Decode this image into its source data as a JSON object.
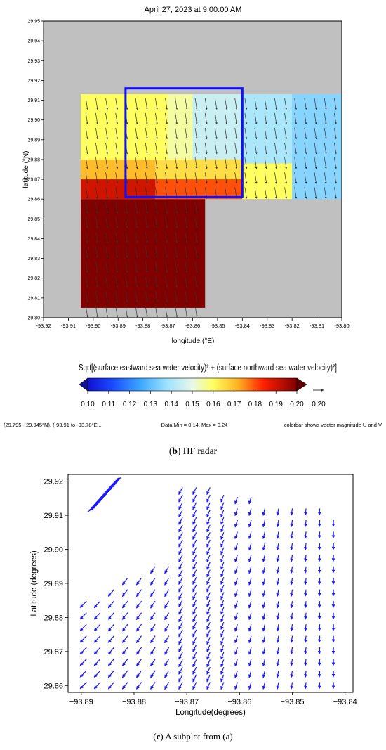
{
  "panel_b": {
    "caption_letter": "b",
    "caption_text": " HF radar",
    "footer_left": "(29.795 - 29.945°N), (-93.91 to -93.78°E...",
    "footer_center": "Data Min = 0.14, Max = 0.24",
    "footer_right": "colorbar shows vector magnitude U and V",
    "colorbar_title": "Sqrt[(surface eastward sea water velocity)² + (surface northward sea water velocity)²]",
    "colorbar_ticks": [
      "0.10",
      "0.11",
      "0.12",
      "0.13",
      "0.14",
      "0.15",
      "0.16",
      "0.17",
      "0.18",
      "0.19",
      "0.20"
    ],
    "reference_vector_label": "0.20",
    "colors": {
      "background_gray": "#c0c0c0",
      "box": "#1010ff",
      "axes_frame": "#000000"
    }
  },
  "panel_c": {
    "caption_letter": "c",
    "caption_text": " A subplot from (a)",
    "colors": {
      "arrow": "#1a1aff"
    }
  },
  "chart_data": [
    {
      "type": "heatmap",
      "title": "April 27, 2023 at 9:00:00 AM",
      "xlabel": "longitude (°E)",
      "ylabel": "latitude (°N)",
      "xlim": [
        -93.92,
        -93.8
      ],
      "ylim": [
        29.8,
        29.95
      ],
      "x_ticks": [
        -93.92,
        -93.91,
        -93.9,
        -93.89,
        -93.88,
        -93.87,
        -93.86,
        -93.85,
        -93.84,
        -93.83,
        -93.82,
        -93.81,
        -93.8
      ],
      "y_ticks": [
        29.8,
        29.81,
        29.82,
        29.83,
        29.84,
        29.85,
        29.86,
        29.87,
        29.88,
        29.89,
        29.9,
        29.91,
        29.92,
        29.93,
        29.94,
        29.95
      ],
      "colorbar_range": [
        0.1,
        0.2
      ],
      "value_units": "vector magnitude U and V",
      "grid": false,
      "highlight_box": {
        "lon_range": [
          -93.887,
          -93.84
        ],
        "lat_range": [
          29.861,
          29.916
        ]
      },
      "regions": [
        {
          "lon_range": [
            -93.905,
            -93.855
          ],
          "lat_range": [
            29.805,
            29.86
          ],
          "value": 0.2
        },
        {
          "lon_range": [
            -93.855,
            -93.84
          ],
          "lat_range": [
            29.86,
            29.875
          ],
          "value": 0.18
        },
        {
          "lon_range": [
            -93.84,
            -93.82
          ],
          "lat_range": [
            29.86,
            29.878
          ],
          "value": 0.16
        },
        {
          "lon_range": [
            -93.905,
            -93.875
          ],
          "lat_range": [
            29.86,
            29.87
          ],
          "value": 0.19
        },
        {
          "lon_range": [
            -93.875,
            -93.855
          ],
          "lat_range": [
            29.86,
            29.87
          ],
          "value": 0.18
        },
        {
          "lon_range": [
            -93.905,
            -93.875
          ],
          "lat_range": [
            29.87,
            29.88
          ],
          "value": 0.17
        },
        {
          "lon_range": [
            -93.875,
            -93.84
          ],
          "lat_range": [
            29.87,
            29.88
          ],
          "value": 0.165
        },
        {
          "lon_range": [
            -93.905,
            -93.87
          ],
          "lat_range": [
            29.88,
            29.913
          ],
          "value": 0.16
        },
        {
          "lon_range": [
            -93.87,
            -93.86
          ],
          "lat_range": [
            29.88,
            29.913
          ],
          "value": 0.155
        },
        {
          "lon_range": [
            -93.86,
            -93.84
          ],
          "lat_range": [
            29.88,
            29.913
          ],
          "value": 0.145
        },
        {
          "lon_range": [
            -93.84,
            -93.82
          ],
          "lat_range": [
            29.878,
            29.913
          ],
          "value": 0.14
        },
        {
          "lon_range": [
            -93.82,
            -93.8
          ],
          "lat_range": [
            29.86,
            29.913
          ],
          "value": 0.135
        }
      ],
      "vector_field": {
        "lon_range": [
          -93.905,
          -93.8
        ],
        "lat_range": [
          29.805,
          29.913
        ],
        "direction": "south, slightly east",
        "spacing_deg": 0.004
      }
    },
    {
      "type": "scatter",
      "plot_kind": "vector field (quiver)",
      "xlabel": "Longitude(degrees)",
      "ylabel": "Latitude (degrees)",
      "xlim": [
        -93.89,
        -93.84
      ],
      "ylim": [
        29.858,
        29.922
      ],
      "x_ticks": [
        -93.89,
        -93.88,
        -93.87,
        -93.86,
        -93.85,
        -93.84
      ],
      "y_ticks": [
        29.86,
        29.87,
        29.88,
        29.89,
        29.9,
        29.91,
        29.92
      ],
      "grid": false,
      "clusters": [
        {
          "name": "northwest",
          "lon_range": [
            -93.889,
            -93.884
          ],
          "lat_range": [
            29.911,
            29.92
          ],
          "direction": "northeast"
        },
        {
          "name": "main",
          "lon_range": [
            -93.889,
            -93.84
          ],
          "lat_range": [
            29.861,
            29.921
          ],
          "direction": "southwest to south"
        }
      ]
    }
  ]
}
